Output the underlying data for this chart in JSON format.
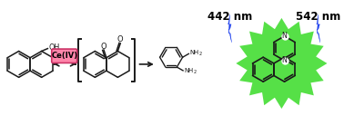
{
  "bg_color": "#ffffff",
  "pink_box_color": "#ff85aa",
  "pink_box_edge_color": "#cc3366",
  "pink_box_text": "Ce(IV)",
  "bond_color": "#1a1a1a",
  "bond_lw": 1.1,
  "bracket_color": "#1a1a1a",
  "nm442_text": "442 nm",
  "nm542_text": "542 nm",
  "nm_text_color": "#000000",
  "nm_fontsize": 8.5,
  "nm_fontweight": "bold",
  "lightning_color": "#2244ee",
  "green_glow_color": "#44dd33",
  "green_glow_alpha": 0.9,
  "figsize": [
    3.78,
    1.38
  ],
  "dpi": 100,
  "xlim": [
    0,
    378
  ],
  "ylim": [
    0,
    138
  ]
}
